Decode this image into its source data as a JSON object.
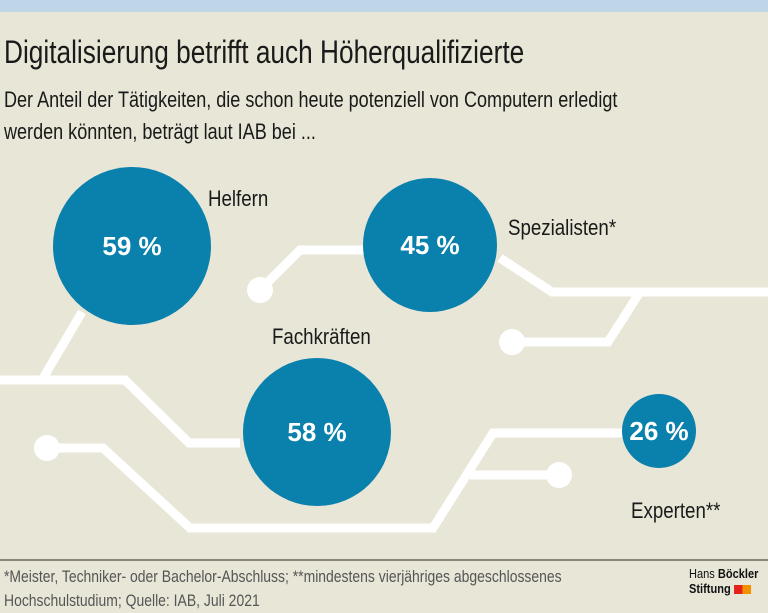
{
  "title": "Digitalisierung betrifft auch Höherqualifizierte",
  "subtitle_line1": "Der Anteil der Tätigkeiten, die schon heute potenziell von Computern erledigt",
  "subtitle_line2": "werden könnten, beträgt laut IAB bei ...",
  "colors": {
    "bubble": "#0a80ad",
    "background": "#e8e6d6",
    "lines": "#ffffff",
    "topbar": "#bfd5e8"
  },
  "chart_data": {
    "type": "bubble",
    "categories": [
      "Helfern",
      "Spezialisten*",
      "Fachkräften",
      "Experten**"
    ],
    "values": [
      59,
      45,
      58,
      26
    ],
    "value_labels": [
      "59 %",
      "45 %",
      "58 %",
      "26 %"
    ],
    "unit": "%"
  },
  "footnote_line1": "*Meister, Techniker- oder Bachelor-Abschluss; **mindestens vierjähriges abgeschlossenes",
  "footnote_line2": "Hochschulstudium; Quelle: IAB, Juli 2021",
  "logo": {
    "line1a": "Hans ",
    "line1b": "Böckler",
    "line2": "Stiftung",
    "colors": [
      "#e2231a",
      "#f39200"
    ]
  }
}
